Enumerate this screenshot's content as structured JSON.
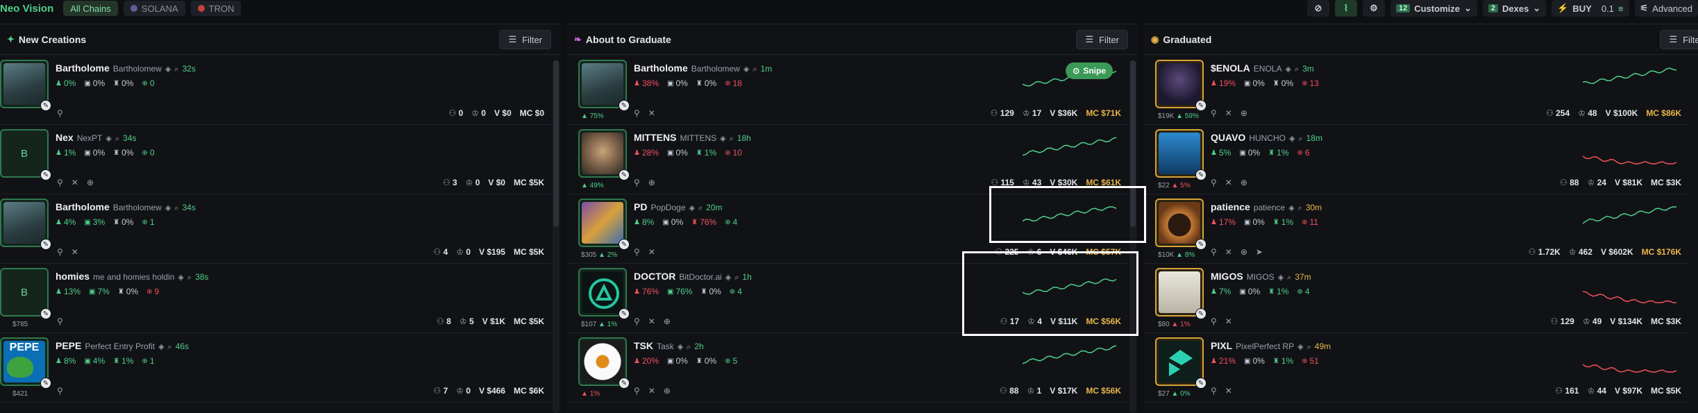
{
  "topbar": {
    "brand": "Neo Vision",
    "chains": [
      {
        "label": "All Chains",
        "active": true
      },
      {
        "label": "SOLANA",
        "active": false
      },
      {
        "label": "TRON",
        "active": false
      }
    ],
    "customize_count": "12",
    "customize_label": "Customize",
    "dexes_count": "2",
    "dexes_label": "Dexes",
    "buy_label": "BUY",
    "buy_amount": "0.1",
    "advanced_label": "Advanced"
  },
  "columns": {
    "new": {
      "title": "New Creations",
      "filter": "Filter",
      "rows": [
        {
          "name": "Bartholome",
          "full": "Bartholomew",
          "age": "32s",
          "avatar_kind": "seal",
          "under": "",
          "s1": "0%",
          "s2": "0%",
          "s3": "0%",
          "s4": "0",
          "holders": "0",
          "pro": "0",
          "v": "V $0",
          "mc": "MC $0"
        },
        {
          "name": "Nex",
          "full": "NexPT",
          "age": "34s",
          "avatar_kind": "letter",
          "letter": "B",
          "under": "",
          "s1": "1%",
          "s2": "0%",
          "s3": "0%",
          "s4": "0",
          "holders": "3",
          "pro": "0",
          "v": "V $0",
          "mc": "MC $5K"
        },
        {
          "name": "Bartholome",
          "full": "Bartholomew",
          "age": "34s",
          "avatar_kind": "seal",
          "under": "",
          "s1": "4%",
          "s2": "3%",
          "s3": "0%",
          "s4": "1",
          "holders": "4",
          "pro": "0",
          "v": "V $195",
          "mc": "MC $5K"
        },
        {
          "name": "homies",
          "full": "me and homies holdin",
          "age": "38s",
          "avatar_kind": "letter",
          "letter": "B",
          "under": "$785",
          "s1": "13%",
          "s2": "7%",
          "s3": "0%",
          "s4": "9",
          "holders": "8",
          "pro": "5",
          "v": "V $1K",
          "mc": "MC $5K"
        },
        {
          "name": "PEPE",
          "full": "Perfect Entry Profit",
          "age": "46s",
          "avatar_kind": "pepe",
          "under": "$421",
          "s1": "8%",
          "s2": "4%",
          "s3": "1%",
          "s4": "1",
          "holders": "7",
          "pro": "0",
          "v": "V $466",
          "mc": "MC $6K"
        }
      ]
    },
    "graduate": {
      "title": "About to Graduate",
      "filter": "Filter",
      "snipe": "Snipe",
      "rows": [
        {
          "name": "Bartholome",
          "full": "Bartholomew",
          "age": "1m",
          "avatar_kind": "seal",
          "under_main": "",
          "under_pct": "75%",
          "s1": "38%",
          "s2": "0%",
          "s3": "0%",
          "s4": "18",
          "holders": "129",
          "pro": "17",
          "v": "V $36K",
          "mc": "MC $71K"
        },
        {
          "name": "MITTENS",
          "full": "MITTENS",
          "age": "18h",
          "avatar_kind": "cat",
          "under_main": "",
          "under_pct": "49%",
          "s1": "28%",
          "s2": "0%",
          "s3": "1%",
          "s4": "10",
          "holders": "115",
          "pro": "43",
          "v": "V $30K",
          "mc": "MC $61K"
        },
        {
          "name": "PD",
          "full": "PopDoge",
          "age": "20m",
          "avatar_kind": "doge",
          "under_main": "$305",
          "under_pct": "2%",
          "s1": "8%",
          "s2": "0%",
          "s3": "76%",
          "s4": "4",
          "holders": "225",
          "pro": "6",
          "v": "V $46K",
          "mc": "MC $57K"
        },
        {
          "name": "DOCTOR",
          "full": "BitDoctor.ai",
          "age": "1h",
          "avatar_kind": "doctor",
          "under_main": "$107",
          "under_pct": "1%",
          "s1": "76%",
          "s2": "76%",
          "s3": "0%",
          "s4": "4",
          "holders": "17",
          "pro": "4",
          "v": "V $11K",
          "mc": "MC $56K"
        },
        {
          "name": "TSK",
          "full": "Task",
          "age": "2h",
          "avatar_kind": "egg",
          "under_main": "",
          "under_pct": "1%",
          "s1": "20%",
          "s2": "0%",
          "s3": "0%",
          "s4": "5",
          "holders": "88",
          "pro": "1",
          "v": "V $17K",
          "mc": "MC $56K"
        }
      ]
    },
    "graduated": {
      "title": "Graduated",
      "filter": "Filter",
      "rows": [
        {
          "name": "$ENOLA",
          "full": "ENOLA",
          "age": "3m",
          "avatar_kind": "enola",
          "under_main": "$19K",
          "under_pct": "59%",
          "s1": "19%",
          "s2": "0%",
          "s3": "0%",
          "s4": "13",
          "holders": "254",
          "pro": "48",
          "v": "V $100K",
          "mc": "MC $86K"
        },
        {
          "name": "QUAVO",
          "full": "HUNCHO",
          "age": "18m",
          "avatar_kind": "quavo",
          "under_main": "$22",
          "under_pct": "5%",
          "s1": "5%",
          "s2": "0%",
          "s3": "1%",
          "s4": "6",
          "holders": "88",
          "pro": "24",
          "v": "V $81K",
          "mc": "MC $3K"
        },
        {
          "name": "patience",
          "full": "patience",
          "age": "30m",
          "avatar_kind": "patience",
          "under_main": "$10K",
          "under_pct": "8%",
          "s1": "17%",
          "s2": "0%",
          "s3": "1%",
          "s4": "11",
          "holders": "1.72K",
          "pro": "462",
          "v": "V $602K",
          "mc": "MC $176K"
        },
        {
          "name": "MIGOS",
          "full": "MIGOS",
          "age": "37m",
          "avatar_kind": "migos",
          "under_main": "$80",
          "under_pct": "1%",
          "s1": "7%",
          "s2": "0%",
          "s3": "1%",
          "s4": "4",
          "holders": "129",
          "pro": "49",
          "v": "V $134K",
          "mc": "MC $3K"
        },
        {
          "name": "PIXL",
          "full": "PixelPerfect RP",
          "age": "49m",
          "avatar_kind": "pixl",
          "under_main": "$27",
          "under_pct": "0%",
          "s1": "21%",
          "s2": "0%",
          "s3": "1%",
          "s4": "51",
          "holders": "161",
          "pro": "44",
          "v": "V $97K",
          "mc": "MC $5K"
        }
      ]
    }
  },
  "colors": {
    "accent": "#4fd18b",
    "danger": "#f0525c",
    "gold": "#e8b64a",
    "bg": "#0e0f12"
  }
}
